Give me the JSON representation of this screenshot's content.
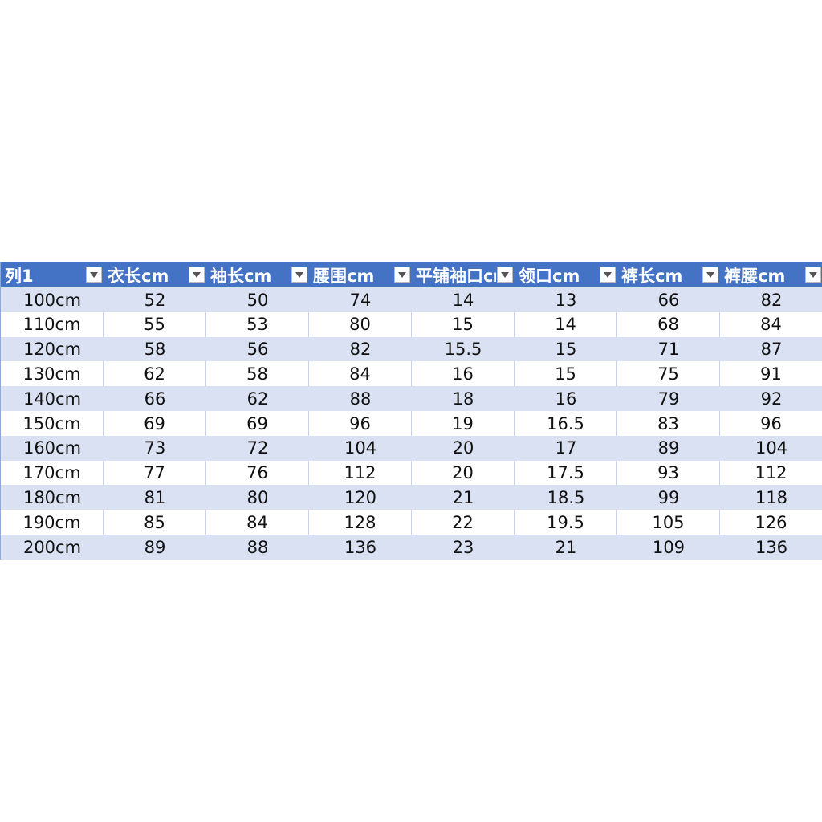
{
  "table": {
    "header": [
      "列1",
      "衣长cm",
      "袖长cm",
      "腰围cm",
      "平铺袖口cm",
      "领口cm",
      "裤长cm",
      "裤腰cm"
    ],
    "rows": [
      [
        "100cm",
        52,
        50,
        74,
        14,
        13,
        66,
        82
      ],
      [
        "110cm",
        55,
        53,
        80,
        15,
        14,
        68,
        84
      ],
      [
        "120cm",
        58,
        56,
        82,
        15.5,
        15,
        71,
        87
      ],
      [
        "130cm",
        62,
        58,
        84,
        16,
        15,
        75,
        91
      ],
      [
        "140cm",
        66,
        62,
        88,
        18,
        16,
        79,
        92
      ],
      [
        "150cm",
        69,
        69,
        96,
        19,
        16.5,
        83,
        96
      ],
      [
        "160cm",
        73,
        72,
        104,
        20,
        17,
        89,
        104
      ],
      [
        "170cm",
        77,
        76,
        112,
        20,
        17.5,
        93,
        112
      ],
      [
        "180cm",
        81,
        80,
        120,
        21,
        18.5,
        99,
        118
      ],
      [
        "190cm",
        85,
        84,
        128,
        22,
        19.5,
        105,
        126
      ],
      [
        "200cm",
        89,
        88,
        136,
        23,
        21,
        109,
        136
      ]
    ]
  }
}
